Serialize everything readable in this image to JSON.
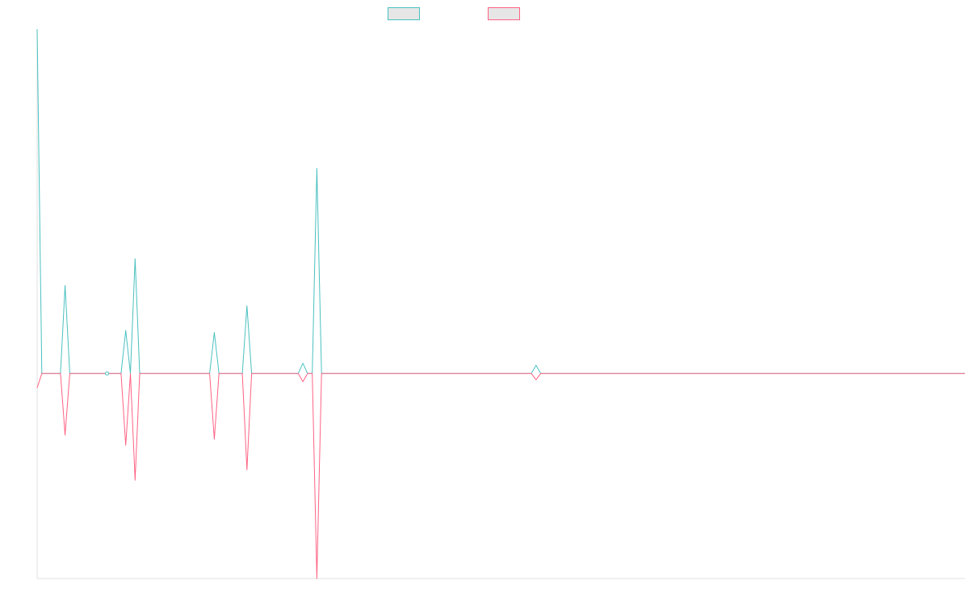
{
  "chart_data": {
    "type": "line",
    "title": "",
    "xlabel": "",
    "ylabel": "",
    "legend_position": "top-center",
    "grid": false,
    "ylim": [
      -100,
      168
    ],
    "series": [
      {
        "name": "",
        "color": "#4bc0c0",
        "points": [
          [
            0,
            168
          ],
          [
            1,
            0
          ],
          [
            5,
            0
          ],
          [
            6,
            43
          ],
          [
            7,
            0
          ],
          [
            18,
            0
          ],
          [
            19,
            21
          ],
          [
            20,
            0
          ],
          [
            21,
            56
          ],
          [
            22,
            0
          ],
          [
            37,
            0
          ],
          [
            38,
            20
          ],
          [
            39,
            0
          ],
          [
            44,
            0
          ],
          [
            45,
            33
          ],
          [
            46,
            0
          ],
          [
            56,
            0
          ],
          [
            57,
            5
          ],
          [
            58,
            0
          ],
          [
            59,
            0
          ],
          [
            60,
            100
          ],
          [
            61,
            0
          ],
          [
            106,
            0
          ],
          [
            107,
            4
          ],
          [
            108,
            0
          ],
          [
            199,
            0
          ]
        ]
      },
      {
        "name": "",
        "color": "#ff6384",
        "points": [
          [
            0,
            -7
          ],
          [
            1,
            0
          ],
          [
            5,
            0
          ],
          [
            6,
            -30
          ],
          [
            7,
            0
          ],
          [
            18,
            0
          ],
          [
            19,
            -35
          ],
          [
            20,
            0
          ],
          [
            21,
            -52
          ],
          [
            22,
            0
          ],
          [
            37,
            0
          ],
          [
            38,
            -32
          ],
          [
            39,
            0
          ],
          [
            44,
            0
          ],
          [
            45,
            -47
          ],
          [
            46,
            0
          ],
          [
            56,
            0
          ],
          [
            57,
            -4
          ],
          [
            58,
            0
          ],
          [
            59,
            0
          ],
          [
            60,
            -100
          ],
          [
            61,
            0
          ],
          [
            106,
            0
          ],
          [
            107,
            -3
          ],
          [
            108,
            0
          ],
          [
            199,
            0
          ]
        ]
      }
    ]
  }
}
